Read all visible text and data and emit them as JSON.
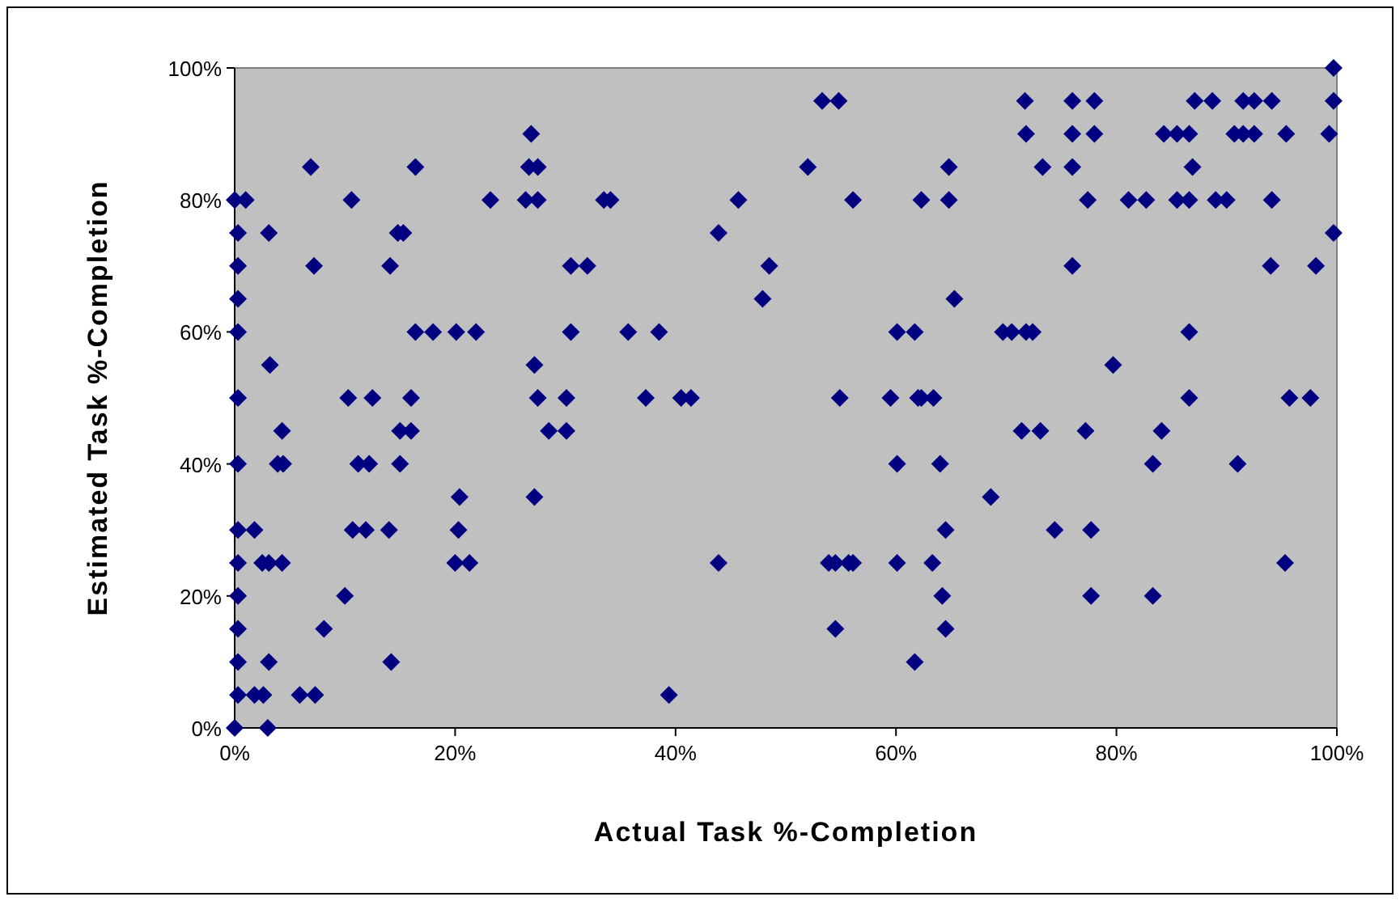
{
  "chart_data": {
    "type": "scatter",
    "xlabel": "Actual Task %-Completion",
    "ylabel": "Estimated Task %-Completion",
    "marker": "diamond",
    "grid": false,
    "xlim": [
      0,
      100
    ],
    "ylim": [
      0,
      100
    ],
    "xticks": [
      {
        "value": 0,
        "label": "0%"
      },
      {
        "value": 20,
        "label": "20%"
      },
      {
        "value": 40,
        "label": "40%"
      },
      {
        "value": 60,
        "label": "60%"
      },
      {
        "value": 80,
        "label": "80%"
      },
      {
        "value": 100,
        "label": "100%"
      }
    ],
    "yticks": [
      {
        "value": 0,
        "label": "0%"
      },
      {
        "value": 20,
        "label": "20%"
      },
      {
        "value": 40,
        "label": "40%"
      },
      {
        "value": 60,
        "label": "60%"
      },
      {
        "value": 80,
        "label": "80%"
      },
      {
        "value": 100,
        "label": "100%"
      }
    ],
    "series": [
      {
        "color": "#000080",
        "x": [
          0,
          0.3,
          0.3,
          0.3,
          0.3,
          0.3,
          0.3,
          0.3,
          0.3,
          0.3,
          0.3,
          0.3,
          0.3,
          0,
          1,
          1.8,
          2.6,
          5.9,
          7.3,
          3,
          3.1,
          14.2,
          8.1,
          10,
          2.5,
          3.1,
          4.3,
          20,
          21.3,
          1.8,
          10.7,
          11.9,
          14,
          20.3,
          20.4,
          27.2,
          3.9,
          4.4,
          11.2,
          12.2,
          15,
          4.3,
          15,
          16,
          28.5,
          30.1,
          10.3,
          12.5,
          16,
          27.5,
          30.1,
          3.2,
          27.2,
          16.4,
          18,
          20.1,
          21.9,
          30.5,
          7.2,
          14.1,
          30.5,
          32,
          3.1,
          14.8,
          15.3,
          10.6,
          23.2,
          26.4,
          27.5,
          33.5,
          6.9,
          16.4,
          26.7,
          27.5,
          26.9,
          53.3,
          54.8,
          52,
          64.8,
          34.1,
          45.7,
          56.1,
          62.3,
          64.8,
          43.9,
          48.5,
          47.9,
          65.3,
          35.7,
          38.5,
          60.1,
          61.7,
          37.3,
          40.5,
          41.4,
          54.9,
          59.5,
          62,
          62.3,
          63.4,
          60.1,
          64,
          64.5,
          43.9,
          53.9,
          54.5,
          55.7,
          56.1,
          60.1,
          63.3,
          64.2,
          54.5,
          64.5,
          61.7,
          39.4,
          99.7,
          71.7,
          76,
          78,
          87.1,
          88.7,
          91.5,
          92.5,
          94.1,
          99.7,
          71.8,
          76,
          78,
          84.3,
          85.5,
          86.6,
          90.7,
          91.5,
          92.5,
          95.4,
          99.3,
          73.3,
          76,
          86.9,
          77.4,
          81.1,
          82.7,
          85.5,
          86.6,
          89,
          90,
          94.1,
          99.7,
          76,
          94,
          98.1,
          69.7,
          70.5,
          71.8,
          72.4,
          86.6,
          79.7,
          86.6,
          95.7,
          97.6,
          71.4,
          73.1,
          77.2,
          84.1,
          83.3,
          91,
          68.6,
          74.4,
          77.7,
          95.3,
          77.7,
          83.3
        ],
        "values": [
          0,
          5,
          10,
          15,
          20,
          25,
          30,
          40,
          50,
          60,
          65,
          70,
          75,
          80,
          80,
          5,
          5,
          5,
          5,
          0,
          10,
          10,
          15,
          20,
          25,
          25,
          25,
          25,
          25,
          30,
          30,
          30,
          30,
          30,
          35,
          35,
          40,
          40,
          40,
          40,
          40,
          45,
          45,
          45,
          45,
          45,
          50,
          50,
          50,
          50,
          50,
          55,
          55,
          60,
          60,
          60,
          60,
          60,
          70,
          70,
          70,
          70,
          75,
          75,
          75,
          80,
          80,
          80,
          80,
          80,
          85,
          85,
          85,
          85,
          90,
          95,
          95,
          85,
          85,
          80,
          80,
          80,
          80,
          80,
          75,
          70,
          65,
          65,
          60,
          60,
          60,
          60,
          50,
          50,
          50,
          50,
          50,
          50,
          50,
          50,
          40,
          40,
          30,
          25,
          25,
          25,
          25,
          25,
          25,
          25,
          20,
          15,
          15,
          10,
          5,
          100,
          95,
          95,
          95,
          95,
          95,
          95,
          95,
          95,
          95,
          90,
          90,
          90,
          90,
          90,
          90,
          90,
          90,
          90,
          90,
          90,
          85,
          85,
          85,
          80,
          80,
          80,
          80,
          80,
          80,
          80,
          80,
          75,
          70,
          70,
          70,
          60,
          60,
          60,
          60,
          60,
          55,
          50,
          50,
          50,
          45,
          45,
          45,
          45,
          40,
          40,
          35,
          30,
          30,
          25,
          20,
          20
        ]
      }
    ]
  }
}
